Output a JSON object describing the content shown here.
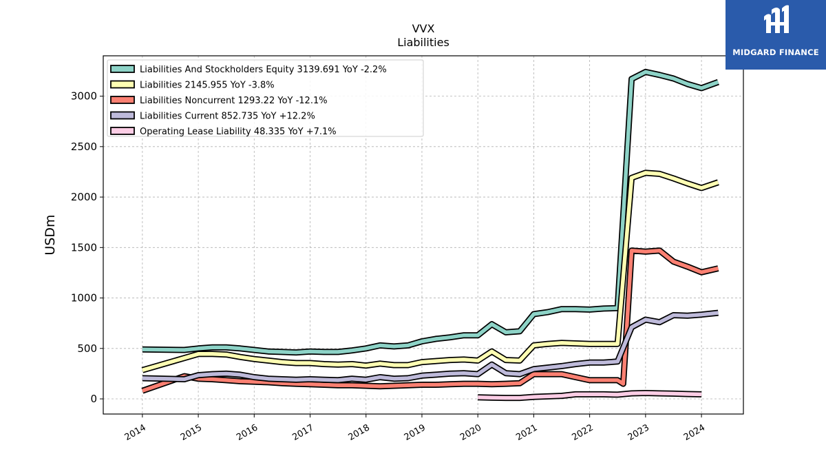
{
  "logo": {
    "text": "MIDGARD FINANCE",
    "icon": "mf-monogram-icon",
    "background": "#2a5bab"
  },
  "chart_data": {
    "type": "line",
    "title": "VVX",
    "subtitle": "Liabilities",
    "ylabel": "USDm",
    "xlabel": "",
    "ylim": [
      -150,
      3400
    ],
    "xlim": [
      2013.3,
      2024.75
    ],
    "yticks": [
      0,
      500,
      1000,
      1500,
      2000,
      2500,
      3000
    ],
    "xticks": [
      "2014",
      "2015",
      "2016",
      "2017",
      "2018",
      "2019",
      "2020",
      "2021",
      "2022",
      "2023",
      "2024"
    ],
    "grid": true,
    "legend_position": "top-left",
    "series": [
      {
        "name": "Liabilities And Stockholders Equity",
        "legend": "Liabilities And Stockholders Equity  3139.691 YoY -2.2%",
        "color": "#8dd3c7",
        "x": [
          2014.0,
          2014.75,
          2015.0,
          2015.25,
          2015.5,
          2015.75,
          2016.0,
          2016.25,
          2016.5,
          2016.75,
          2017.0,
          2017.25,
          2017.5,
          2017.75,
          2018.0,
          2018.25,
          2018.5,
          2018.75,
          2019.0,
          2019.25,
          2019.5,
          2019.75,
          2020.0,
          2020.25,
          2020.5,
          2020.75,
          2021.0,
          2021.25,
          2021.5,
          2021.75,
          2022.0,
          2022.25,
          2022.5,
          2022.75,
          2023.0,
          2023.25,
          2023.5,
          2023.75,
          2024.0,
          2024.3
        ],
        "y": [
          490,
          485,
          500,
          510,
          510,
          500,
          485,
          470,
          465,
          460,
          470,
          465,
          465,
          480,
          500,
          530,
          520,
          530,
          570,
          595,
          610,
          630,
          630,
          740,
          660,
          670,
          840,
          860,
          890,
          890,
          885,
          895,
          900,
          3170,
          3240,
          3210,
          3175,
          3120,
          3080,
          3139.691
        ]
      },
      {
        "name": "Liabilities",
        "legend": "Liabilities  2145.955 YoY -3.8%",
        "color": "#ffffb3",
        "x": [
          2014.0,
          2014.75,
          2015.0,
          2015.25,
          2015.5,
          2015.75,
          2016.0,
          2016.25,
          2016.5,
          2016.75,
          2017.0,
          2017.25,
          2017.5,
          2017.75,
          2018.0,
          2018.25,
          2018.5,
          2018.75,
          2019.0,
          2019.25,
          2019.5,
          2019.75,
          2020.0,
          2020.25,
          2020.5,
          2020.75,
          2021.0,
          2021.25,
          2021.5,
          2021.75,
          2022.0,
          2022.25,
          2022.5,
          2022.75,
          2023.0,
          2023.25,
          2023.5,
          2023.75,
          2024.0,
          2024.3
        ],
        "y": [
          285,
          405,
          445,
          445,
          440,
          415,
          395,
          380,
          365,
          355,
          355,
          345,
          340,
          345,
          330,
          350,
          335,
          335,
          365,
          375,
          385,
          390,
          380,
          470,
          385,
          380,
          530,
          545,
          555,
          550,
          545,
          545,
          545,
          2190,
          2240,
          2230,
          2185,
          2135,
          2090,
          2145.955
        ]
      },
      {
        "name": "Liabilities Noncurrent",
        "legend": "Liabilities Noncurrent  1293.22 YoY -12.1%",
        "color": "#fb8072",
        "x": [
          2014.0,
          2014.75,
          2015.0,
          2015.25,
          2015.5,
          2015.75,
          2016.0,
          2016.25,
          2016.5,
          2016.75,
          2017.0,
          2017.25,
          2017.5,
          2017.75,
          2018.0,
          2018.25,
          2018.5,
          2018.75,
          2019.0,
          2019.25,
          2019.5,
          2019.75,
          2020.0,
          2020.25,
          2020.5,
          2020.75,
          2021.0,
          2021.25,
          2021.5,
          2021.75,
          2022.0,
          2022.25,
          2022.5,
          2022.6,
          2022.75,
          2023.0,
          2023.25,
          2023.5,
          2023.75,
          2024.0,
          2024.3
        ],
        "y": [
          80,
          225,
          200,
          195,
          185,
          175,
          170,
          165,
          155,
          150,
          145,
          140,
          135,
          135,
          130,
          125,
          130,
          135,
          140,
          140,
          145,
          150,
          150,
          145,
          150,
          155,
          245,
          245,
          245,
          215,
          185,
          185,
          185,
          150,
          1470,
          1460,
          1470,
          1360,
          1310,
          1255,
          1293.22
        ]
      },
      {
        "name": "Liabilities Current",
        "legend": "Liabilities Current  852.735 YoY +12.2%",
        "color": "#bebada",
        "x": [
          2014.0,
          2014.75,
          2015.0,
          2015.25,
          2015.5,
          2015.75,
          2016.0,
          2016.25,
          2016.5,
          2016.75,
          2017.0,
          2017.25,
          2017.5,
          2017.75,
          2018.0,
          2018.25,
          2018.5,
          2018.75,
          2019.0,
          2019.25,
          2019.5,
          2019.75,
          2020.0,
          2020.25,
          2020.5,
          2020.75,
          2021.0,
          2021.25,
          2021.5,
          2021.75,
          2022.0,
          2022.25,
          2022.5,
          2022.75,
          2023.0,
          2023.25,
          2023.5,
          2023.75,
          2024.0,
          2024.3
        ],
        "y": [
          205,
          195,
          235,
          245,
          250,
          240,
          215,
          200,
          195,
          190,
          195,
          190,
          185,
          200,
          190,
          215,
          200,
          205,
          230,
          240,
          250,
          255,
          245,
          340,
          255,
          245,
          295,
          310,
          325,
          345,
          360,
          360,
          370,
          710,
          785,
          760,
          830,
          825,
          835,
          852.735
        ]
      },
      {
        "name": "Operating Lease Liability",
        "legend": "Operating Lease Liability  48.335 YoY +7.1%",
        "color": "#fccde5",
        "x": [
          2020.0,
          2020.25,
          2020.5,
          2020.75,
          2021.0,
          2021.25,
          2021.5,
          2021.75,
          2022.0,
          2022.25,
          2022.5,
          2022.75,
          2023.0,
          2023.25,
          2023.5,
          2023.75,
          2024.0
        ],
        "y": [
          15,
          12,
          10,
          10,
          20,
          25,
          30,
          45,
          45,
          45,
          42,
          55,
          58,
          55,
          52,
          48,
          45
        ]
      }
    ]
  }
}
